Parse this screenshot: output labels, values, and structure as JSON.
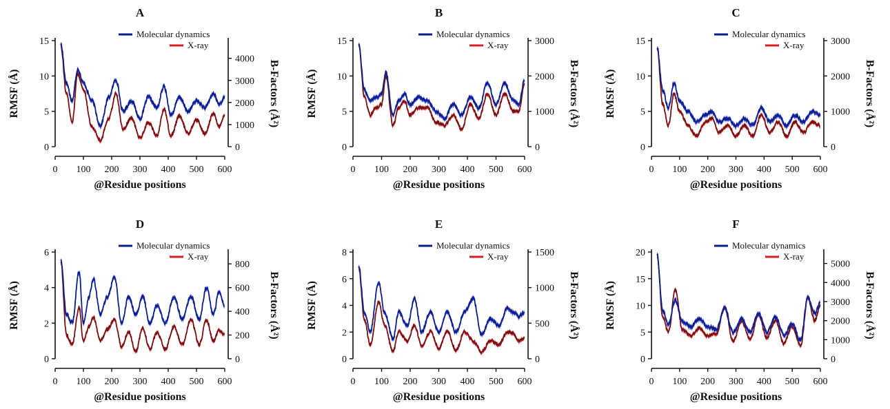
{
  "figure": {
    "legend": [
      "Molecular dynamics",
      "X-ray"
    ],
    "xlabel": "@Residue positions",
    "ylabel_left": "RMSF (Å)",
    "ylabel_right": "B-Factors (Å²)",
    "colors": {
      "md": "#0b1f8c",
      "md_band": "#2733d8",
      "xray": "#7a0f12",
      "xray_band": "#d81e23"
    }
  },
  "chart_data": [
    {
      "type": "line",
      "panel": "A",
      "xlim": [
        0,
        600
      ],
      "xticks": [
        0,
        100,
        200,
        300,
        400,
        500,
        600
      ],
      "ylim": [
        0,
        15
      ],
      "yticks": [
        0,
        5,
        10,
        15
      ],
      "y2lim": [
        0,
        4800
      ],
      "y2ticks": [
        0,
        1000,
        2000,
        3000,
        4000
      ],
      "x": [
        20,
        40,
        60,
        80,
        100,
        130,
        160,
        190,
        215,
        240,
        270,
        300,
        330,
        360,
        385,
        410,
        440,
        470,
        500,
        530,
        560,
        580,
        600
      ],
      "series": [
        {
          "name": "Molecular dynamics",
          "axis": "left",
          "values": [
            14.5,
            9.0,
            6.5,
            11.0,
            9.0,
            6.5,
            3.0,
            7.0,
            9.5,
            5.0,
            6.5,
            4.0,
            7.0,
            5.5,
            8.5,
            4.5,
            7.0,
            5.0,
            6.5,
            5.5,
            7.5,
            6.0,
            7.0
          ]
        },
        {
          "name": "X-ray",
          "axis": "right",
          "values": [
            4600,
            2400,
            1100,
            3300,
            2600,
            900,
            300,
            1300,
            2400,
            800,
            1300,
            400,
            1100,
            500,
            1700,
            500,
            1400,
            600,
            1200,
            600,
            1500,
            900,
            1400
          ]
        }
      ]
    },
    {
      "type": "line",
      "panel": "B",
      "xlim": [
        0,
        600
      ],
      "xticks": [
        0,
        100,
        200,
        300,
        400,
        500,
        600
      ],
      "ylim": [
        0,
        15
      ],
      "yticks": [
        0,
        5,
        10,
        15
      ],
      "y2lim": [
        0,
        3000
      ],
      "y2ticks": [
        0,
        1000,
        2000,
        3000
      ],
      "x": [
        20,
        40,
        60,
        80,
        100,
        115,
        140,
        160,
        180,
        200,
        230,
        260,
        290,
        320,
        350,
        380,
        410,
        440,
        470,
        500,
        530,
        560,
        580,
        600
      ],
      "series": [
        {
          "name": "Molecular dynamics",
          "axis": "left",
          "values": [
            14.5,
            8.0,
            6.5,
            7.0,
            7.5,
            10.5,
            4.5,
            6.5,
            7.5,
            6.0,
            7.0,
            6.5,
            5.0,
            4.0,
            6.0,
            4.5,
            7.0,
            5.5,
            9.0,
            6.0,
            9.0,
            6.5,
            6.0,
            9.5
          ]
        },
        {
          "name": "X-ray",
          "axis": "right",
          "values": [
            2900,
            1400,
            900,
            1100,
            1200,
            2000,
            600,
            1100,
            1300,
            900,
            1100,
            1100,
            700,
            600,
            900,
            500,
            1200,
            800,
            1500,
            900,
            1500,
            1000,
            1000,
            1800
          ]
        }
      ]
    },
    {
      "type": "line",
      "panel": "C",
      "xlim": [
        0,
        600
      ],
      "xticks": [
        0,
        100,
        200,
        300,
        400,
        500,
        600
      ],
      "ylim": [
        0,
        15
      ],
      "yticks": [
        0,
        5,
        10,
        15
      ],
      "y2lim": [
        0,
        3000
      ],
      "y2ticks": [
        0,
        1000,
        2000,
        3000
      ],
      "x": [
        20,
        40,
        60,
        80,
        100,
        130,
        160,
        190,
        215,
        240,
        270,
        300,
        330,
        360,
        390,
        420,
        450,
        480,
        510,
        540,
        570,
        600
      ],
      "series": [
        {
          "name": "Molecular dynamics",
          "axis": "left",
          "values": [
            14.0,
            8.0,
            5.5,
            9.0,
            6.5,
            5.0,
            3.5,
            4.5,
            5.0,
            3.5,
            4.0,
            3.0,
            4.0,
            3.0,
            5.5,
            3.5,
            4.5,
            3.0,
            4.5,
            3.5,
            5.0,
            4.5
          ]
        },
        {
          "name": "X-ray",
          "axis": "right",
          "values": [
            2800,
            1200,
            600,
            1500,
            1000,
            600,
            300,
            700,
            800,
            400,
            600,
            300,
            600,
            300,
            900,
            400,
            700,
            300,
            700,
            400,
            700,
            600
          ]
        }
      ]
    },
    {
      "type": "line",
      "panel": "D",
      "xlim": [
        0,
        600
      ],
      "xticks": [
        0,
        100,
        200,
        300,
        400,
        500,
        600
      ],
      "ylim": [
        0,
        6
      ],
      "yticks": [
        0,
        2,
        4,
        6
      ],
      "y2lim": [
        0,
        900
      ],
      "y2ticks": [
        0,
        200,
        400,
        600,
        800
      ],
      "x": [
        20,
        40,
        60,
        85,
        100,
        120,
        135,
        160,
        185,
        210,
        235,
        260,
        285,
        310,
        335,
        360,
        390,
        420,
        450,
        480,
        510,
        535,
        560,
        580,
        600
      ],
      "series": [
        {
          "name": "Molecular dynamics",
          "axis": "left",
          "values": [
            5.5,
            2.5,
            2.0,
            4.9,
            2.0,
            3.5,
            4.5,
            2.5,
            3.5,
            4.6,
            2.0,
            3.5,
            2.5,
            3.5,
            2.0,
            3.0,
            2.0,
            3.5,
            2.2,
            3.5,
            2.2,
            4.0,
            2.5,
            3.8,
            3.0
          ]
        },
        {
          "name": "X-ray",
          "axis": "right",
          "values": [
            830,
            200,
            120,
            430,
            150,
            270,
            350,
            150,
            250,
            330,
            100,
            230,
            60,
            260,
            80,
            220,
            80,
            270,
            120,
            330,
            120,
            330,
            150,
            240,
            200
          ]
        }
      ]
    },
    {
      "type": "line",
      "panel": "E",
      "xlim": [
        0,
        600
      ],
      "xticks": [
        0,
        100,
        200,
        300,
        400,
        500,
        600
      ],
      "ylim": [
        0,
        8
      ],
      "yticks": [
        0,
        2,
        4,
        6,
        8
      ],
      "y2lim": [
        0,
        1500
      ],
      "y2ticks": [
        0,
        500,
        1000,
        1500
      ],
      "x": [
        20,
        40,
        60,
        90,
        110,
        140,
        160,
        190,
        215,
        240,
        270,
        300,
        330,
        360,
        390,
        420,
        450,
        480,
        510,
        540,
        560,
        580,
        600
      ],
      "series": [
        {
          "name": "Molecular dynamics",
          "axis": "left",
          "values": [
            7.0,
            3.5,
            2.0,
            5.8,
            3.5,
            1.5,
            3.5,
            2.5,
            4.5,
            2.0,
            3.5,
            2.0,
            3.5,
            2.0,
            3.5,
            4.5,
            1.8,
            3.0,
            2.5,
            3.8,
            3.5,
            3.2,
            3.5
          ]
        },
        {
          "name": "X-ray",
          "axis": "right",
          "values": [
            1280,
            550,
            200,
            800,
            480,
            100,
            380,
            250,
            470,
            180,
            380,
            150,
            380,
            120,
            380,
            250,
            100,
            250,
            200,
            380,
            360,
            250,
            300
          ]
        }
      ]
    },
    {
      "type": "line",
      "panel": "F",
      "xlim": [
        0,
        600
      ],
      "xticks": [
        0,
        100,
        200,
        300,
        400,
        500,
        600
      ],
      "ylim": [
        0,
        20
      ],
      "yticks": [
        0,
        5,
        10,
        15,
        20
      ],
      "y2lim": [
        0,
        5600
      ],
      "y2ticks": [
        0,
        1000,
        2000,
        3000,
        4000,
        5000
      ],
      "x": [
        20,
        40,
        60,
        85,
        110,
        140,
        170,
        200,
        230,
        260,
        290,
        320,
        350,
        380,
        410,
        440,
        470,
        500,
        530,
        555,
        580,
        600
      ],
      "series": [
        {
          "name": "Molecular dynamics",
          "axis": "left",
          "values": [
            19.5,
            9.0,
            6.5,
            11.0,
            7.0,
            6.0,
            7.5,
            6.0,
            5.5,
            9.5,
            5.0,
            7.5,
            5.0,
            8.5,
            5.0,
            8.0,
            4.5,
            6.5,
            3.5,
            11.5,
            8.5,
            10.5
          ]
        },
        {
          "name": "X-ray",
          "axis": "right",
          "values": [
            5400,
            2200,
            1400,
            3600,
            1500,
            1200,
            1600,
            1200,
            1300,
            2700,
            900,
            2000,
            1000,
            2300,
            1100,
            2000,
            800,
            1700,
            700,
            3200,
            2000,
            2800
          ]
        }
      ]
    }
  ]
}
